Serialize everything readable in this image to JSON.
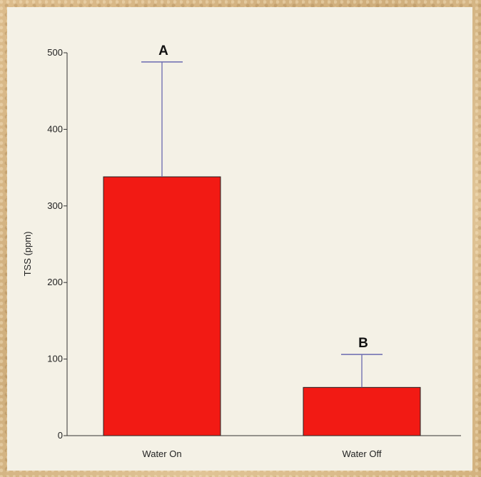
{
  "chart_data": {
    "type": "bar",
    "title": "",
    "xlabel": "",
    "ylabel": "TSS (ppm)",
    "ylim": [
      0,
      500
    ],
    "yticks": [
      0,
      100,
      200,
      300,
      400,
      500
    ],
    "categories": [
      "Water On",
      "Water Off"
    ],
    "values": [
      338,
      63
    ],
    "error_upper": [
      488,
      106
    ],
    "significance_labels": [
      "A",
      "B"
    ],
    "grid": false,
    "colors": {
      "bar": "#f21a14",
      "bar_outline": "#222222",
      "error_bar": "#6a6ab0"
    }
  }
}
